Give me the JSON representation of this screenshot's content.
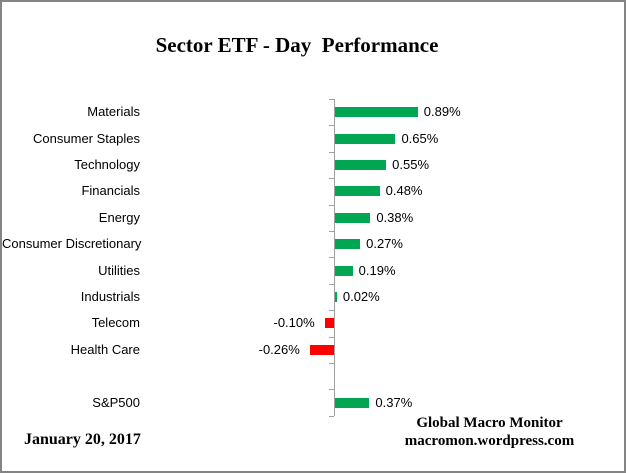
{
  "chart_data": {
    "type": "bar",
    "orientation": "horizontal",
    "title": "Sector ETF - Day  Performance",
    "categories": [
      "Materials",
      "Consumer Staples",
      "Technology",
      "Financials",
      "Energy",
      "Consumer Discretionary",
      "Utilities",
      "Industrials",
      "Telecom",
      "Health Care",
      "",
      "S&P500"
    ],
    "values": [
      0.89,
      0.65,
      0.55,
      0.48,
      0.38,
      0.27,
      0.19,
      0.02,
      -0.1,
      -0.26,
      null,
      0.37
    ],
    "value_labels": [
      "0.89%",
      "0.65%",
      "0.55%",
      "0.48%",
      "0.38%",
      "0.27%",
      "0.19%",
      "0.02%",
      "-0.10%",
      "-0.26%",
      "",
      "0.37%"
    ],
    "xlabel": "",
    "ylabel": "",
    "xlim": [
      -0.4,
      1.0
    ],
    "grid": false,
    "legend": false,
    "axis_tick_labels_visible": false,
    "positive_color": "#00A651",
    "negative_color": "#FF0000",
    "axis_color": "#A0A0A0"
  },
  "footer": {
    "date": "January 20, 2017",
    "credit_line1": "Global Macro Monitor",
    "credit_line2": "macromon.wordpress.com"
  }
}
